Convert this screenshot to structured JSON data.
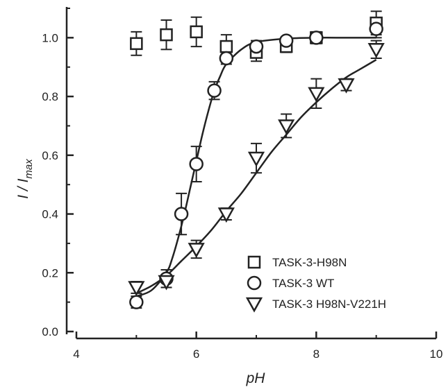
{
  "chart_data": {
    "type": "scatter",
    "title": "",
    "xlabel": "pH",
    "ylabel": {
      "main": "I / I",
      "sub": "max"
    },
    "xlim": [
      4,
      10
    ],
    "ylim": [
      0,
      1.1
    ],
    "xticks": [
      4,
      6,
      8,
      10
    ],
    "yticks": [
      0.0,
      0.2,
      0.4,
      0.6,
      0.8,
      1.0
    ],
    "xtick_labels": [
      "4",
      "6",
      "8",
      "10"
    ],
    "ytick_labels": [
      "0.0",
      "0.2",
      "0.4",
      "0.6",
      "0.8",
      "1.0"
    ],
    "grid": false,
    "legend_position": "lower-right",
    "series": [
      {
        "name": "TASK-3-H98N",
        "marker": "square",
        "color": "#222222",
        "x": [
          5.0,
          5.5,
          6.0,
          6.5,
          7.0,
          7.5,
          8.0,
          9.0
        ],
        "y": [
          0.98,
          1.01,
          1.02,
          0.97,
          0.95,
          0.97,
          1.0,
          1.05
        ],
        "err": [
          0.04,
          0.05,
          0.05,
          0.04,
          0.03,
          0.02,
          0.02,
          0.04
        ]
      },
      {
        "name": "TASK-3 WT",
        "marker": "circle",
        "color": "#222222",
        "x": [
          5.0,
          5.5,
          5.75,
          6.0,
          6.3,
          6.5,
          7.0,
          7.5,
          8.0,
          9.0
        ],
        "y": [
          0.1,
          0.18,
          0.4,
          0.57,
          0.82,
          0.93,
          0.97,
          0.99,
          1.0,
          1.03
        ],
        "err": [
          0.02,
          0.03,
          0.07,
          0.06,
          0.03,
          0.02,
          0.02,
          0.01,
          0.01,
          0.03
        ],
        "fit": {
          "x": [
            5.0,
            5.25,
            5.5,
            5.6,
            5.7,
            5.8,
            5.9,
            6.0,
            6.1,
            6.2,
            6.3,
            6.4,
            6.5,
            6.75,
            7.0,
            7.5,
            8.0,
            8.5,
            9.0
          ],
          "y": [
            0.12,
            0.14,
            0.2,
            0.25,
            0.32,
            0.4,
            0.49,
            0.58,
            0.67,
            0.75,
            0.82,
            0.87,
            0.91,
            0.96,
            0.985,
            0.997,
            1.0,
            1.0,
            1.0
          ]
        }
      },
      {
        "name": "TASK-3 H98N-V221H",
        "marker": "triangle-down",
        "color": "#222222",
        "x": [
          5.0,
          5.5,
          6.0,
          6.5,
          7.0,
          7.5,
          8.0,
          8.5,
          9.0
        ],
        "y": [
          0.15,
          0.17,
          0.28,
          0.4,
          0.59,
          0.7,
          0.81,
          0.84,
          0.96
        ],
        "err": [
          0.02,
          0.02,
          0.03,
          0.02,
          0.05,
          0.04,
          0.05,
          0.02,
          0.03
        ],
        "fit": {
          "x": [
            5.0,
            5.25,
            5.5,
            5.75,
            6.0,
            6.25,
            6.5,
            6.75,
            7.0,
            7.25,
            7.5,
            7.75,
            8.0,
            8.25,
            8.5,
            8.75,
            9.0
          ],
          "y": [
            0.13,
            0.155,
            0.19,
            0.24,
            0.29,
            0.345,
            0.41,
            0.47,
            0.54,
            0.61,
            0.67,
            0.73,
            0.78,
            0.825,
            0.865,
            0.895,
            0.925
          ]
        }
      }
    ]
  }
}
